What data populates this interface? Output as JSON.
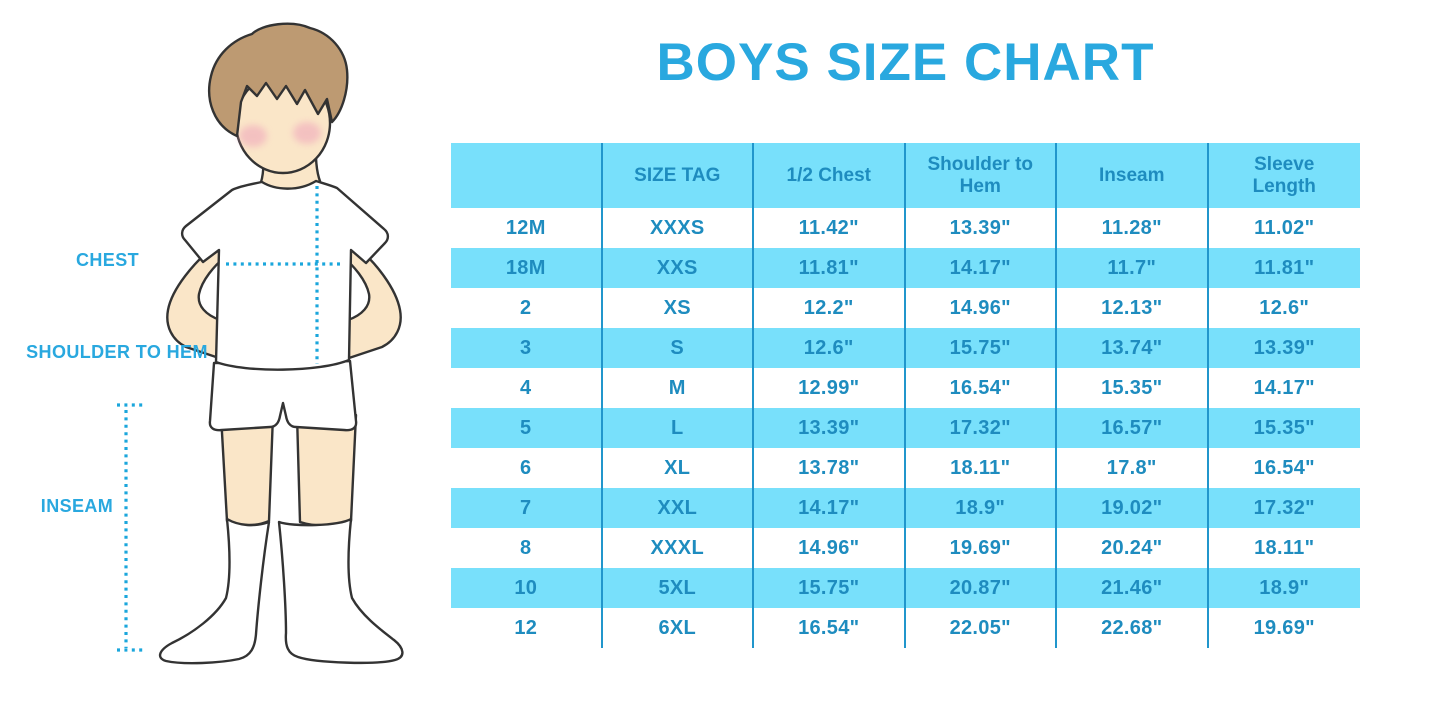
{
  "title": "BOYS SIZE CHART",
  "figure": {
    "description": "cartoon boy in white t-shirt, shorts and socks with measurement guide lines",
    "labels": {
      "chest": "CHEST",
      "shoulder_to_hem": "SHOULDER TO HEM",
      "inseam": "INSEAM"
    }
  },
  "colors": {
    "accent_blue": "#29A8DF",
    "dotted_line": "#1BA6DC",
    "table_fill": "#78E0FB",
    "table_text": "#1E8CBF",
    "table_divider": "#2196CC",
    "hair": "#BD9A72",
    "skin": "#FAE6C8",
    "blush": "#F0A9BC",
    "outline": "#333333"
  },
  "chart_data": {
    "type": "table",
    "title": "BOYS SIZE CHART",
    "columns": [
      "",
      "SIZE TAG",
      "1/2 Chest",
      "Shoulder to Hem",
      "Inseam",
      "Sleeve Length"
    ],
    "rows": [
      [
        "12M",
        "XXXS",
        "11.42\"",
        "13.39\"",
        "11.28\"",
        "11.02\""
      ],
      [
        "18M",
        "XXS",
        "11.81\"",
        "14.17\"",
        "11.7\"",
        "11.81\""
      ],
      [
        "2",
        "XS",
        "12.2\"",
        "14.96\"",
        "12.13\"",
        "12.6\""
      ],
      [
        "3",
        "S",
        "12.6\"",
        "15.75\"",
        "13.74\"",
        "13.39\""
      ],
      [
        "4",
        "M",
        "12.99\"",
        "16.54\"",
        "15.35\"",
        "14.17\""
      ],
      [
        "5",
        "L",
        "13.39\"",
        "17.32\"",
        "16.57\"",
        "15.35\""
      ],
      [
        "6",
        "XL",
        "13.78\"",
        "18.11\"",
        "17.8\"",
        "16.54\""
      ],
      [
        "7",
        "XXL",
        "14.17\"",
        "18.9\"",
        "19.02\"",
        "17.32\""
      ],
      [
        "8",
        "XXXL",
        "14.96\"",
        "19.69\"",
        "20.24\"",
        "18.11\""
      ],
      [
        "10",
        "5XL",
        "15.75\"",
        "20.87\"",
        "21.46\"",
        "18.9\""
      ],
      [
        "12",
        "6XL",
        "16.54\"",
        "22.05\"",
        "22.68\"",
        "19.69\""
      ]
    ],
    "layout": {
      "header_background": "cyan",
      "row_striping": "white / cyan alternating",
      "grid": "vertical dividers only"
    }
  }
}
